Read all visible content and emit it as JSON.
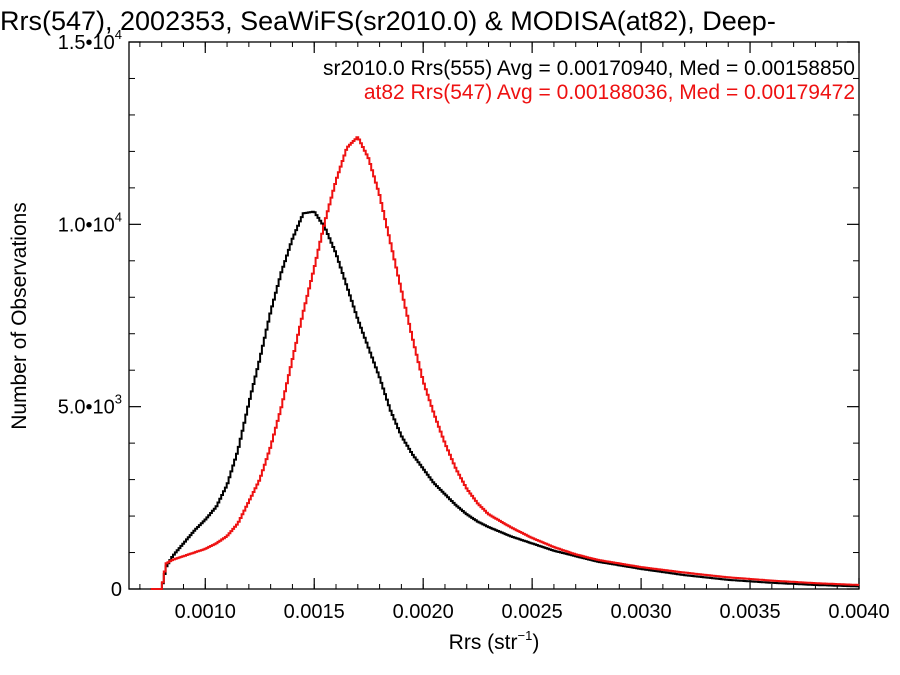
{
  "chart_data": {
    "type": "line",
    "step": true,
    "title": "Rrs(547), 2002353, SeaWiFS(sr2010.0) & MODISA(at82), Deep-",
    "xlabel": "Rrs (str",
    "xlabel_sup": "−1",
    "xlabel_close": ")",
    "ylabel": "Number of Observations",
    "xlim": [
      0.00065,
      0.004
    ],
    "ylim": [
      0,
      15000
    ],
    "x_ticks": [
      {
        "value": 0.001,
        "label": "0.0010"
      },
      {
        "value": 0.0015,
        "label": "0.0015"
      },
      {
        "value": 0.002,
        "label": "0.0020"
      },
      {
        "value": 0.0025,
        "label": "0.0025"
      },
      {
        "value": 0.003,
        "label": "0.0030"
      },
      {
        "value": 0.0035,
        "label": "0.0035"
      },
      {
        "value": 0.004,
        "label": "0.0040"
      }
    ],
    "y_ticks": [
      {
        "value": 0,
        "mantissa": "0",
        "exp": ""
      },
      {
        "value": 5000,
        "mantissa": "5.0•10",
        "exp": "3"
      },
      {
        "value": 10000,
        "mantissa": "1.0•10",
        "exp": "4"
      },
      {
        "value": 15000,
        "mantissa": "1.5•10",
        "exp": "4"
      }
    ],
    "legend_placement": "top-right",
    "series": [
      {
        "name": "sr2010.0 Rrs(555) Avg = 0.00170940, Med = 0.00158850",
        "color": "#000000",
        "x": [
          0.00075,
          0.0008,
          0.00082,
          0.00085,
          0.0009,
          0.00095,
          0.001,
          0.00105,
          0.0011,
          0.00115,
          0.0012,
          0.00125,
          0.0013,
          0.00135,
          0.0014,
          0.00145,
          0.0015,
          0.00155,
          0.0016,
          0.00165,
          0.0017,
          0.00175,
          0.0018,
          0.00185,
          0.0019,
          0.00195,
          0.002,
          0.00205,
          0.0021,
          0.00215,
          0.0022,
          0.00225,
          0.0023,
          0.0024,
          0.0025,
          0.0026,
          0.0027,
          0.0028,
          0.003,
          0.0032,
          0.0034,
          0.0036,
          0.0038,
          0.004
        ],
        "y": [
          0,
          0,
          600,
          900,
          1250,
          1600,
          1900,
          2250,
          2850,
          3800,
          5100,
          6300,
          7600,
          8700,
          9600,
          10300,
          10350,
          9900,
          9200,
          8300,
          7400,
          6600,
          5800,
          4900,
          4200,
          3700,
          3300,
          2900,
          2600,
          2300,
          2050,
          1850,
          1700,
          1450,
          1250,
          1050,
          900,
          750,
          550,
          380,
          250,
          170,
          110,
          70
        ]
      },
      {
        "name": "at82 Rrs(547) Avg = 0.00188036, Med = 0.00179472",
        "color": "#ee1111",
        "x": [
          0.00075,
          0.0008,
          0.00082,
          0.00085,
          0.0009,
          0.00095,
          0.001,
          0.00105,
          0.0011,
          0.00115,
          0.0012,
          0.00125,
          0.0013,
          0.00135,
          0.0014,
          0.00145,
          0.0015,
          0.00155,
          0.0016,
          0.00165,
          0.0017,
          0.00175,
          0.0018,
          0.00185,
          0.0019,
          0.00195,
          0.002,
          0.00205,
          0.0021,
          0.00215,
          0.0022,
          0.00225,
          0.0023,
          0.0024,
          0.0025,
          0.0026,
          0.0027,
          0.0028,
          0.003,
          0.0032,
          0.0034,
          0.0036,
          0.0038,
          0.004
        ],
        "y": [
          0,
          0,
          700,
          800,
          900,
          1000,
          1100,
          1250,
          1450,
          1800,
          2400,
          3000,
          3900,
          5000,
          6300,
          7600,
          8800,
          10100,
          11200,
          12100,
          12400,
          11800,
          10800,
          9500,
          8200,
          6900,
          5700,
          4800,
          4000,
          3300,
          2750,
          2350,
          2050,
          1700,
          1400,
          1150,
          950,
          800,
          600,
          450,
          320,
          230,
          160,
          110
        ]
      }
    ]
  }
}
